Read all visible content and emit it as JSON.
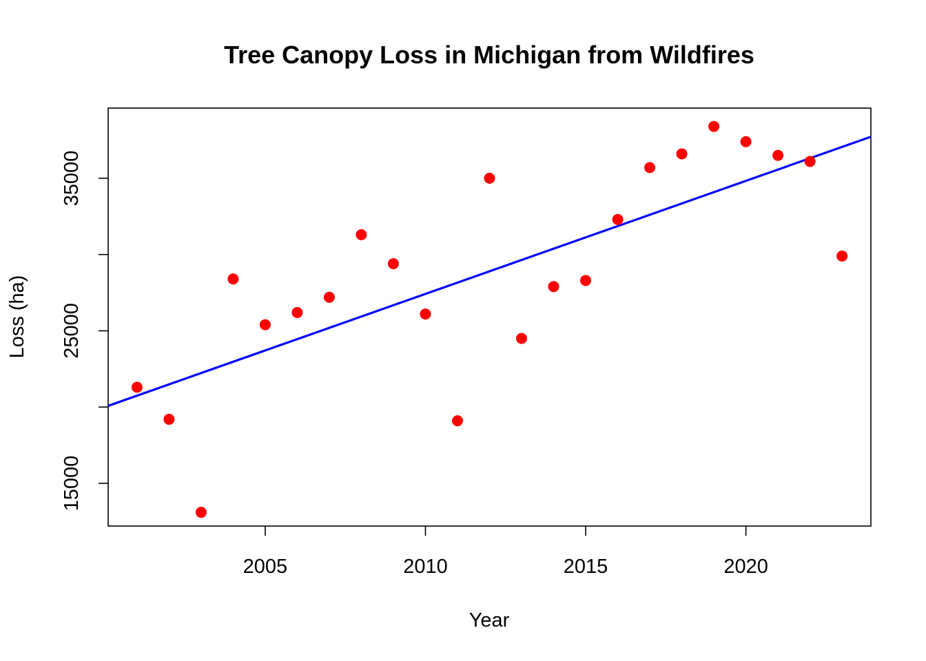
{
  "chart_data": {
    "type": "scatter",
    "title": "Tree Canopy Loss in Michigan from Wildfires",
    "xlabel": "Year",
    "ylabel": "Loss (ha)",
    "xlim": [
      2000.1,
      2023.9
    ],
    "ylim": [
      12200,
      39600
    ],
    "xticks": [
      2005,
      2010,
      2015,
      2020
    ],
    "yticks": [
      15000,
      25000,
      35000
    ],
    "ytick_minor": [
      20000,
      30000
    ],
    "grid": false,
    "point_color": "#ff0000",
    "line_color": "#0000ff",
    "points": {
      "x": [
        2001,
        2002,
        2003,
        2004,
        2005,
        2006,
        2007,
        2008,
        2009,
        2010,
        2011,
        2012,
        2013,
        2014,
        2015,
        2016,
        2017,
        2018,
        2019,
        2020,
        2021,
        2022,
        2023
      ],
      "y": [
        21300,
        19200,
        13100,
        28400,
        25400,
        26200,
        27200,
        31300,
        29400,
        26100,
        19100,
        35000,
        24500,
        27900,
        28300,
        32300,
        35700,
        36600,
        38400,
        37400,
        36500,
        36100,
        29900
      ]
    },
    "trend_line": {
      "x": [
        2000.1,
        2023.9
      ],
      "y": [
        20080,
        37720
      ]
    }
  }
}
